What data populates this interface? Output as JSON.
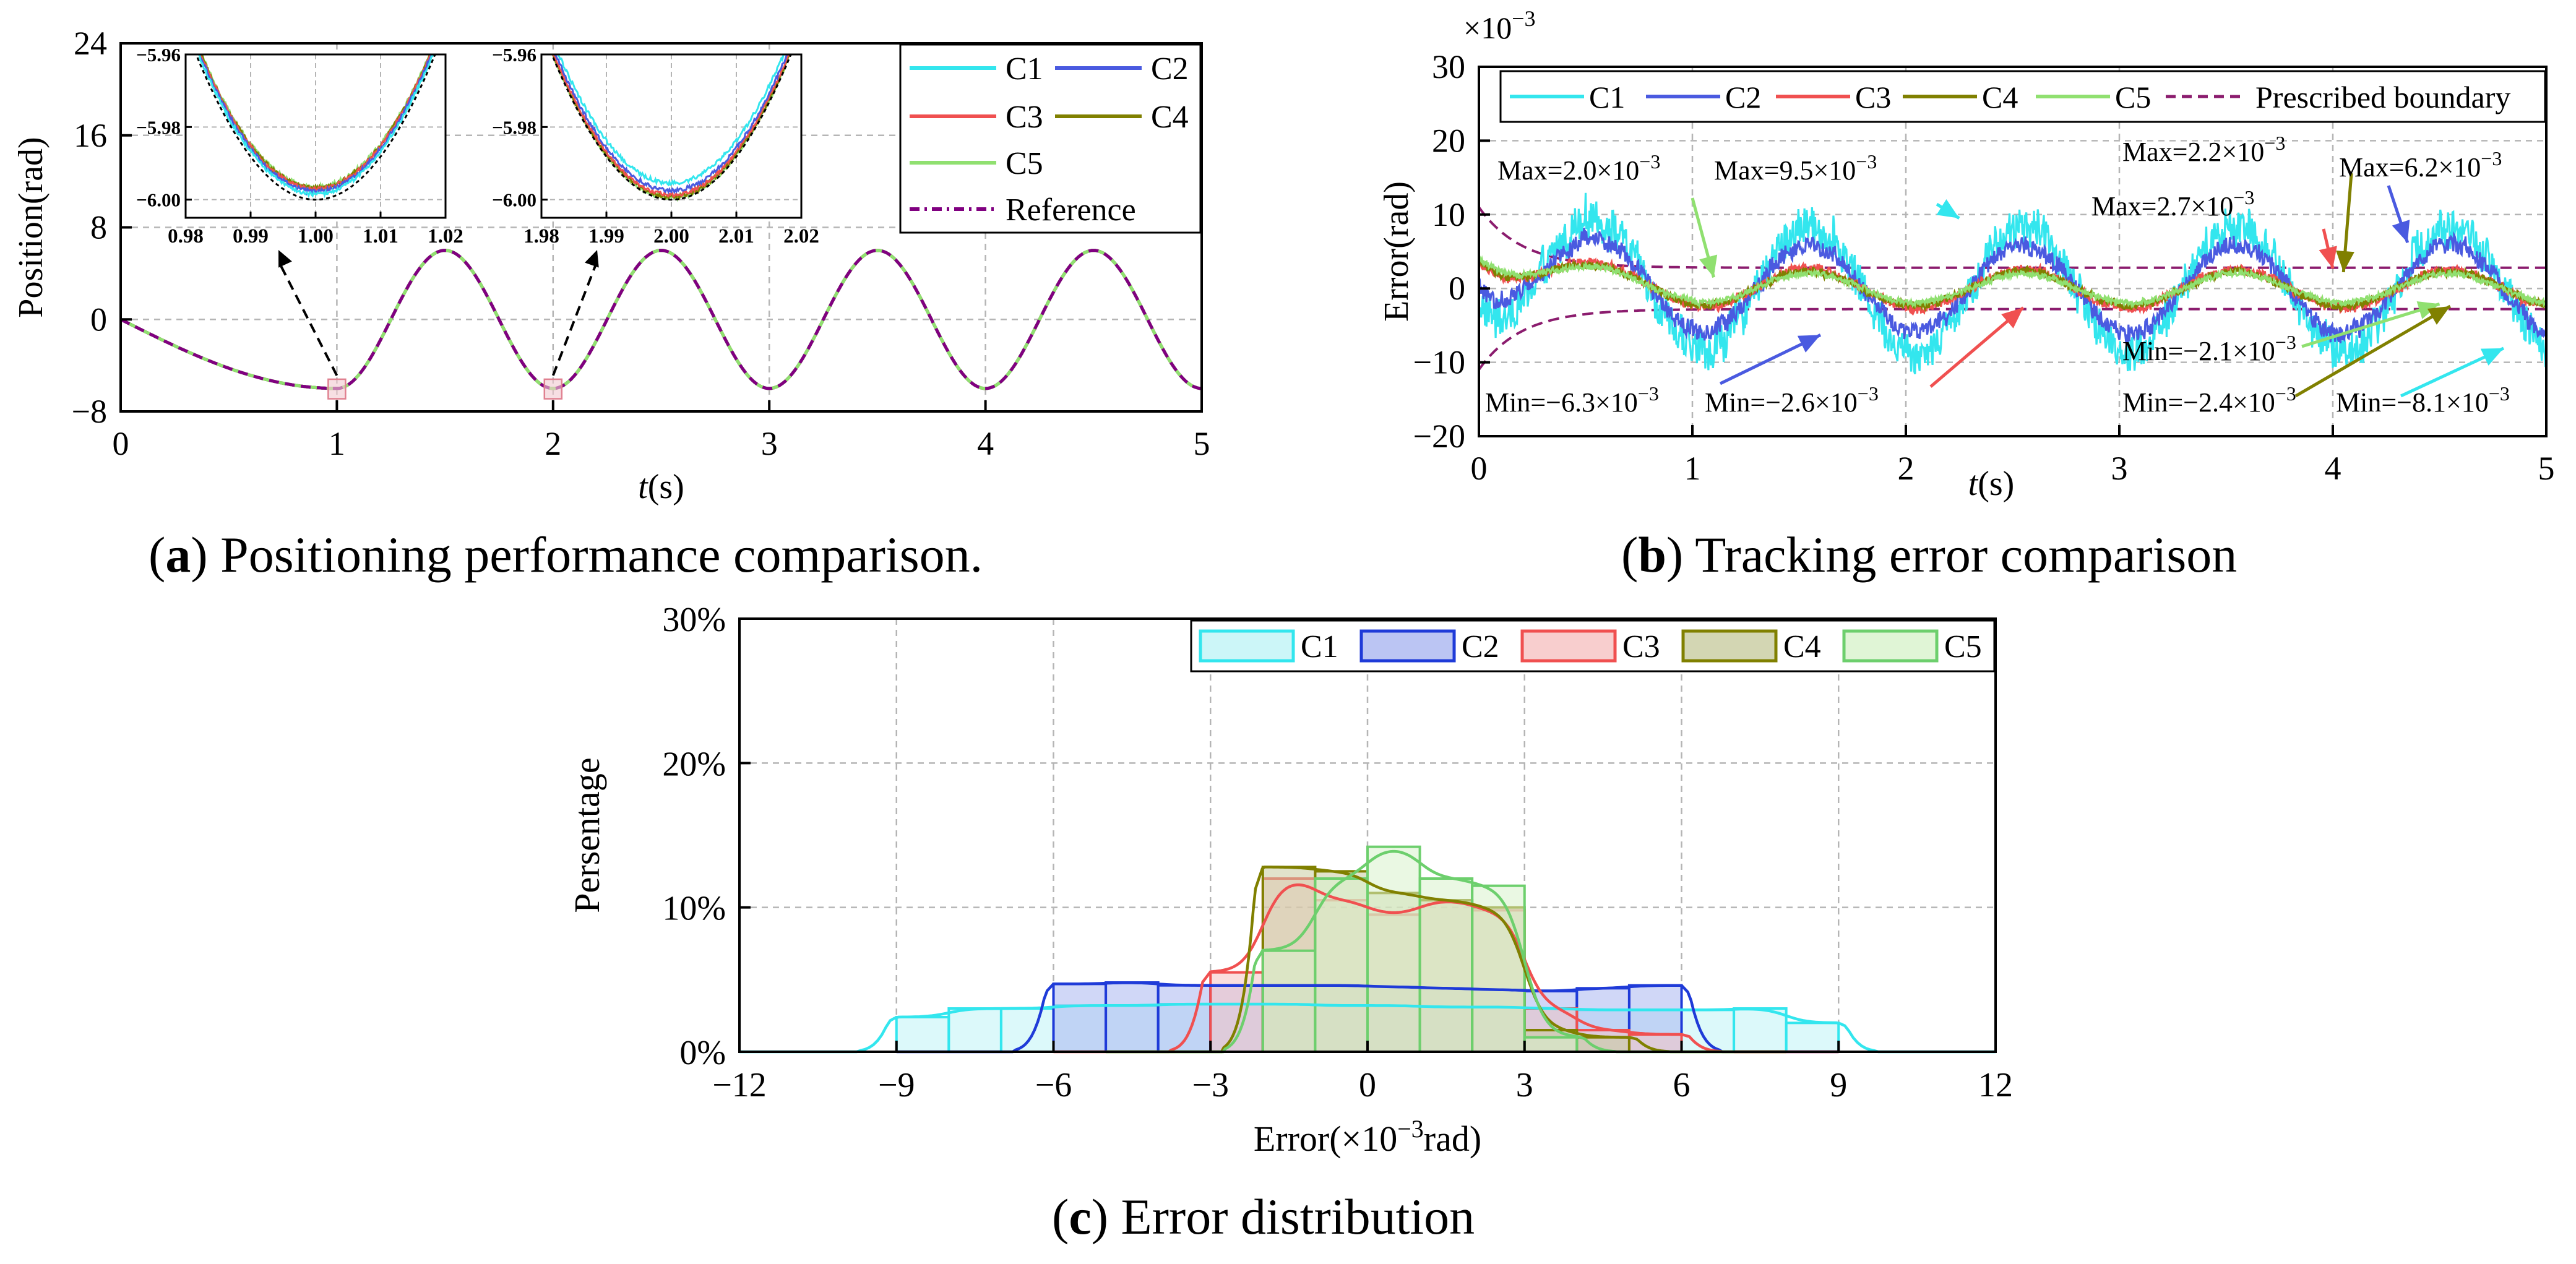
{
  "colors": {
    "C1": "#33e6ee",
    "C2": "#4a5ae0",
    "C3": "#f05050",
    "C4": "#808000",
    "C5": "#90e070",
    "reference": "#800080",
    "boundary": "#8b1c6e",
    "c2_hist": "#1f3bd8"
  },
  "panels": [
    {
      "key": "a",
      "letter": "a",
      "caption": "Positioning performance comparison."
    },
    {
      "key": "b",
      "letter": "b",
      "caption": "Tracking error comparison"
    },
    {
      "key": "c",
      "letter": "c",
      "caption": "Error distribution"
    }
  ],
  "chart_data": [
    {
      "id": "a",
      "type": "line",
      "ylabel": "Position(rad)",
      "xlabel_italic": "t",
      "xlabel_unit": "(s)",
      "xlim": [
        0,
        5
      ],
      "ylim": [
        -8,
        24
      ],
      "xticks": [
        0,
        1,
        2,
        3,
        4,
        5
      ],
      "yticks": [
        -8,
        0,
        8,
        16,
        24
      ],
      "reference_function": "-6*sin(pi*t/2) for t<=1; -6*cos(2*pi*t) for t>1",
      "series": [
        {
          "name": "C1",
          "color_key": "C1"
        },
        {
          "name": "C2",
          "color_key": "C2"
        },
        {
          "name": "C3",
          "color_key": "C3"
        },
        {
          "name": "C4",
          "color_key": "C4"
        },
        {
          "name": "C5",
          "color_key": "C5"
        },
        {
          "name": "Reference",
          "color_key": "reference",
          "dashed": true
        }
      ],
      "insets": [
        {
          "center_t": 1,
          "xlim": [
            0.98,
            1.02
          ],
          "ylim": [
            -6.005,
            -5.96
          ],
          "xticks": [
            "0.98",
            "0.99",
            "1.00",
            "1.01",
            "1.02"
          ],
          "yticks": [
            "−5.96",
            "−5.98",
            "−6.00"
          ],
          "offsets": {
            "C1": 0.0015,
            "C2": 0.0023,
            "C3": 0.0029,
            "C4": 0.0032,
            "C5": 0.0035
          }
        },
        {
          "center_t": 2,
          "xlim": [
            1.98,
            2.02
          ],
          "ylim": [
            -6.005,
            -5.96
          ],
          "xticks": [
            "1.98",
            "1.99",
            "2.00",
            "2.01",
            "2.02"
          ],
          "yticks": [
            "−5.96",
            "−5.98",
            "−6.00"
          ],
          "offsets": {
            "C1": 0.0045,
            "C2": 0.0025,
            "C3": 0.0013,
            "C4": 0.0008,
            "C5": 0.0005
          }
        }
      ]
    },
    {
      "id": "b",
      "type": "line",
      "ylabel": "Error(rad)",
      "xlabel_italic": "t",
      "xlabel_unit": "(s)",
      "scale_note": "×10",
      "scale_exp": "−3",
      "xlim": [
        0,
        5
      ],
      "ylim": [
        -20,
        30
      ],
      "xticks": [
        0,
        1,
        2,
        3,
        4,
        5
      ],
      "yticks": [
        -20,
        -10,
        0,
        10,
        20,
        30
      ],
      "boundary_label": "Prescribed boundary",
      "series": [
        {
          "name": "C1",
          "color_key": "C1",
          "amplitude": 8.5,
          "noise": 2.6
        },
        {
          "name": "C2",
          "color_key": "C2",
          "amplitude": 6.0,
          "noise": 1.2
        },
        {
          "name": "C3",
          "color_key": "C3",
          "amplitude": 2.6,
          "noise": 0.6
        },
        {
          "name": "C4",
          "color_key": "C4",
          "amplitude": 2.3,
          "noise": 0.5
        },
        {
          "name": "C5",
          "color_key": "C5",
          "amplitude": 2.0,
          "noise": 0.4
        }
      ],
      "annotations": [
        {
          "text": "Max=2.0×10",
          "exp": "−3",
          "color_key": "C5",
          "t": 1.1,
          "v": 1.5
        },
        {
          "text": "Max=9.5×10",
          "exp": "−3",
          "color_key": "C1",
          "t": 2.25,
          "v": 9.5
        },
        {
          "text": "Max=2.2×10",
          "exp": "−3",
          "color_key": "C4",
          "t": 4.05,
          "v": 2.2
        },
        {
          "text": "Max=6.2×10",
          "exp": "−3",
          "color_key": "C2",
          "t": 4.35,
          "v": 6.2
        },
        {
          "text": "Max=2.7×10",
          "exp": "−3",
          "color_key": "C3",
          "t": 4.0,
          "v": 2.7
        },
        {
          "text": "Min=−6.3×10",
          "exp": "−3",
          "color_key": "C2",
          "t": 1.6,
          "v": -6.3
        },
        {
          "text": "Min=−2.6×10",
          "exp": "−3",
          "color_key": "C3",
          "t": 2.55,
          "v": -2.6
        },
        {
          "text": "Min=−2.1×10",
          "exp": "−3",
          "color_key": "C5",
          "t": 4.5,
          "v": -2.1
        },
        {
          "text": "Min=−2.4×10",
          "exp": "−3",
          "color_key": "C4",
          "t": 4.55,
          "v": -2.4
        },
        {
          "text": "Min=−8.1×10",
          "exp": "−3",
          "color_key": "C1",
          "t": 4.8,
          "v": -8.1
        }
      ]
    },
    {
      "id": "c",
      "type": "bar",
      "ylabel": "Persentage",
      "xlabel_text": "Error(×10",
      "xlabel_exp": "−3",
      "xlabel_unit": "rad)",
      "xlim": [
        -12,
        12
      ],
      "ylim": [
        0,
        30
      ],
      "xticks": [
        -12,
        -9,
        -6,
        -3,
        0,
        3,
        6,
        9,
        12
      ],
      "ytick_labels": [
        "0%",
        "10%",
        "20%",
        "30%"
      ],
      "yticks": [
        0,
        10,
        20,
        30
      ],
      "series": [
        {
          "name": "C1",
          "color_key": "C1",
          "bin_start": -9,
          "bin_width": 1,
          "values": [
            2.4,
            3.0,
            3.0,
            3.2,
            3.2,
            3.3,
            3.3,
            3.3,
            3.2,
            3.2,
            3.1,
            3.1,
            3.0,
            2.9,
            2.9,
            2.9,
            3.0,
            2.0
          ]
        },
        {
          "name": "C2",
          "color_key": "C2",
          "bin_start": -6,
          "bin_width": 1,
          "values": [
            4.7,
            4.8,
            4.6,
            4.6,
            4.6,
            4.6,
            4.5,
            4.4,
            4.3,
            4.2,
            4.4,
            4.6
          ]
        },
        {
          "name": "C3",
          "color_key": "C3",
          "bin_start": -3,
          "bin_width": 1,
          "values": [
            5.5,
            12.0,
            10.5,
            9.5,
            10.5,
            9.8,
            3.0,
            1.5,
            1.2
          ]
        },
        {
          "name": "C4",
          "color_key": "C4",
          "bin_start": -2,
          "bin_width": 1,
          "values": [
            12.8,
            12.5,
            11.0,
            10.5,
            10.0,
            1.5,
            1.0
          ]
        },
        {
          "name": "C5",
          "color_key": "C5",
          "bin_start": -2,
          "bin_width": 1,
          "values": [
            7.0,
            12.0,
            14.2,
            12.0,
            11.5,
            1.0
          ]
        }
      ]
    }
  ]
}
